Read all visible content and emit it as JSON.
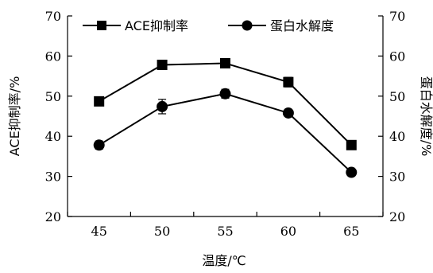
{
  "chart_data": {
    "type": "line",
    "x": [
      45,
      50,
      55,
      60,
      65
    ],
    "xlabel": "温度/℃",
    "ylabel_left": "ACE抑制率/%",
    "ylabel_right": "蛋白水解度/%",
    "ylim": [
      20,
      70
    ],
    "yticks": [
      "20",
      "30",
      "40",
      "50",
      "60",
      "70"
    ],
    "xticks": [
      "45",
      "50",
      "55",
      "60",
      "65"
    ],
    "grid": false,
    "legend_position": "top",
    "series": [
      {
        "name": "ACE抑制率",
        "marker": "square",
        "color": "#000000",
        "values": [
          48.7,
          57.8,
          58.2,
          53.5,
          37.8
        ],
        "errors": [
          0.8,
          0.6,
          0.7,
          1.2,
          0.6
        ],
        "axis": "left"
      },
      {
        "name": "蛋白水解度",
        "marker": "circle",
        "color": "#000000",
        "values": [
          37.8,
          47.4,
          50.6,
          45.8,
          31.0
        ],
        "errors": [
          1.0,
          1.8,
          1.1,
          0.7,
          0.6
        ],
        "axis": "right"
      }
    ]
  }
}
